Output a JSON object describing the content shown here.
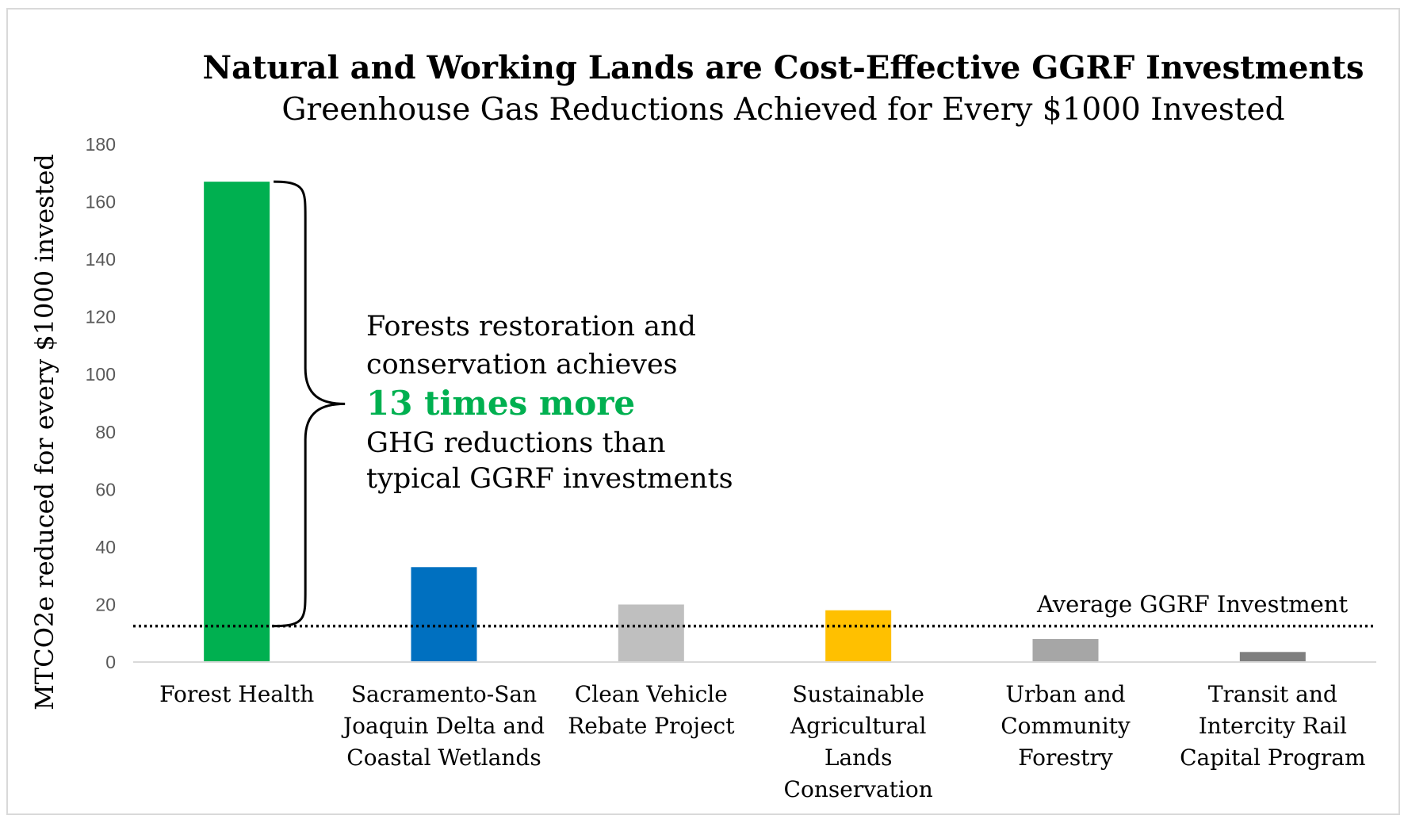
{
  "chart_data": {
    "type": "bar",
    "title": "Natural and Working Lands are Cost-Effective GGRF Investments",
    "subtitle": "Greenhouse Gas Reductions Achieved for Every $1000 Invested",
    "xlabel": "",
    "ylabel": "MTCO2e reduced for every $1000 invested",
    "ylim": [
      0,
      180
    ],
    "yticks": [
      0,
      20,
      40,
      60,
      80,
      100,
      120,
      140,
      160,
      180
    ],
    "categories": [
      [
        "Forest Health"
      ],
      [
        "Sacramento-San",
        "Joaquin Delta and",
        "Coastal Wetlands"
      ],
      [
        "Clean Vehicle",
        "Rebate Project"
      ],
      [
        "Sustainable",
        "Agricultural",
        "Lands",
        "Conservation"
      ],
      [
        "Urban and",
        "Community",
        "Forestry"
      ],
      [
        "Transit and",
        "Intercity Rail",
        "Capital Program"
      ]
    ],
    "values": [
      167,
      33,
      20,
      18,
      8,
      3.5
    ],
    "colors": [
      "#00b050",
      "#0070c0",
      "#bfbfbf",
      "#ffc000",
      "#a6a6a6",
      "#7f7f7f"
    ],
    "grid": false,
    "legend": "none",
    "reference_line": {
      "label": "Average GGRF Investment",
      "value": 12.5,
      "style": "dotted"
    },
    "annotation": {
      "lines": [
        "Forests restoration and",
        "conservation achieves",
        "13 times more",
        "GHG reductions than",
        "typical GGRF investments"
      ],
      "highlight_color": "#00b050"
    }
  }
}
